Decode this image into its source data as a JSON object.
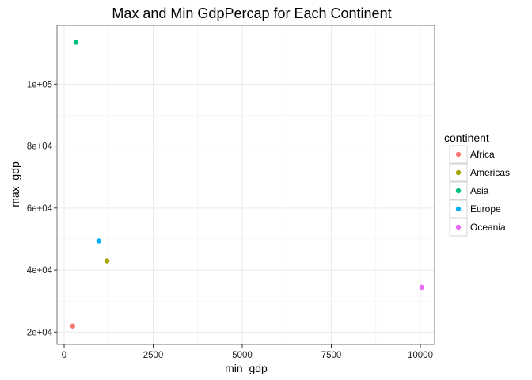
{
  "chart_data": {
    "type": "scatter",
    "title": "Max and Min GdpPercap for Each Continent",
    "xlabel": "min_gdp",
    "ylabel": "max_gdp",
    "xlim": [
      -200,
      10400
    ],
    "ylim": [
      16000,
      119000
    ],
    "x_ticks": [
      0,
      2500,
      5000,
      7500,
      10000
    ],
    "x_tick_labels": [
      "0",
      "2500",
      "5000",
      "7500",
      "10000"
    ],
    "y_ticks": [
      20000,
      40000,
      60000,
      80000,
      100000
    ],
    "y_tick_labels": [
      "2e+04",
      "4e+04",
      "6e+04",
      "8e+04",
      "1e+05"
    ],
    "grid": true,
    "legend": {
      "title": "continent",
      "placement": "right"
    },
    "series": [
      {
        "name": "Africa",
        "color": "#F8766D",
        "x": [
          241
        ],
        "y": [
          21951
        ]
      },
      {
        "name": "Americas",
        "color": "#A3A500",
        "x": [
          1202
        ],
        "y": [
          42952
        ]
      },
      {
        "name": "Asia",
        "color": "#00BF7D",
        "x": [
          331
        ],
        "y": [
          113523
        ]
      },
      {
        "name": "Europe",
        "color": "#00B0F6",
        "x": [
          974
        ],
        "y": [
          49357
        ]
      },
      {
        "name": "Oceania",
        "color": "#E76BF3",
        "x": [
          10040
        ],
        "y": [
          34435
        ]
      }
    ]
  }
}
